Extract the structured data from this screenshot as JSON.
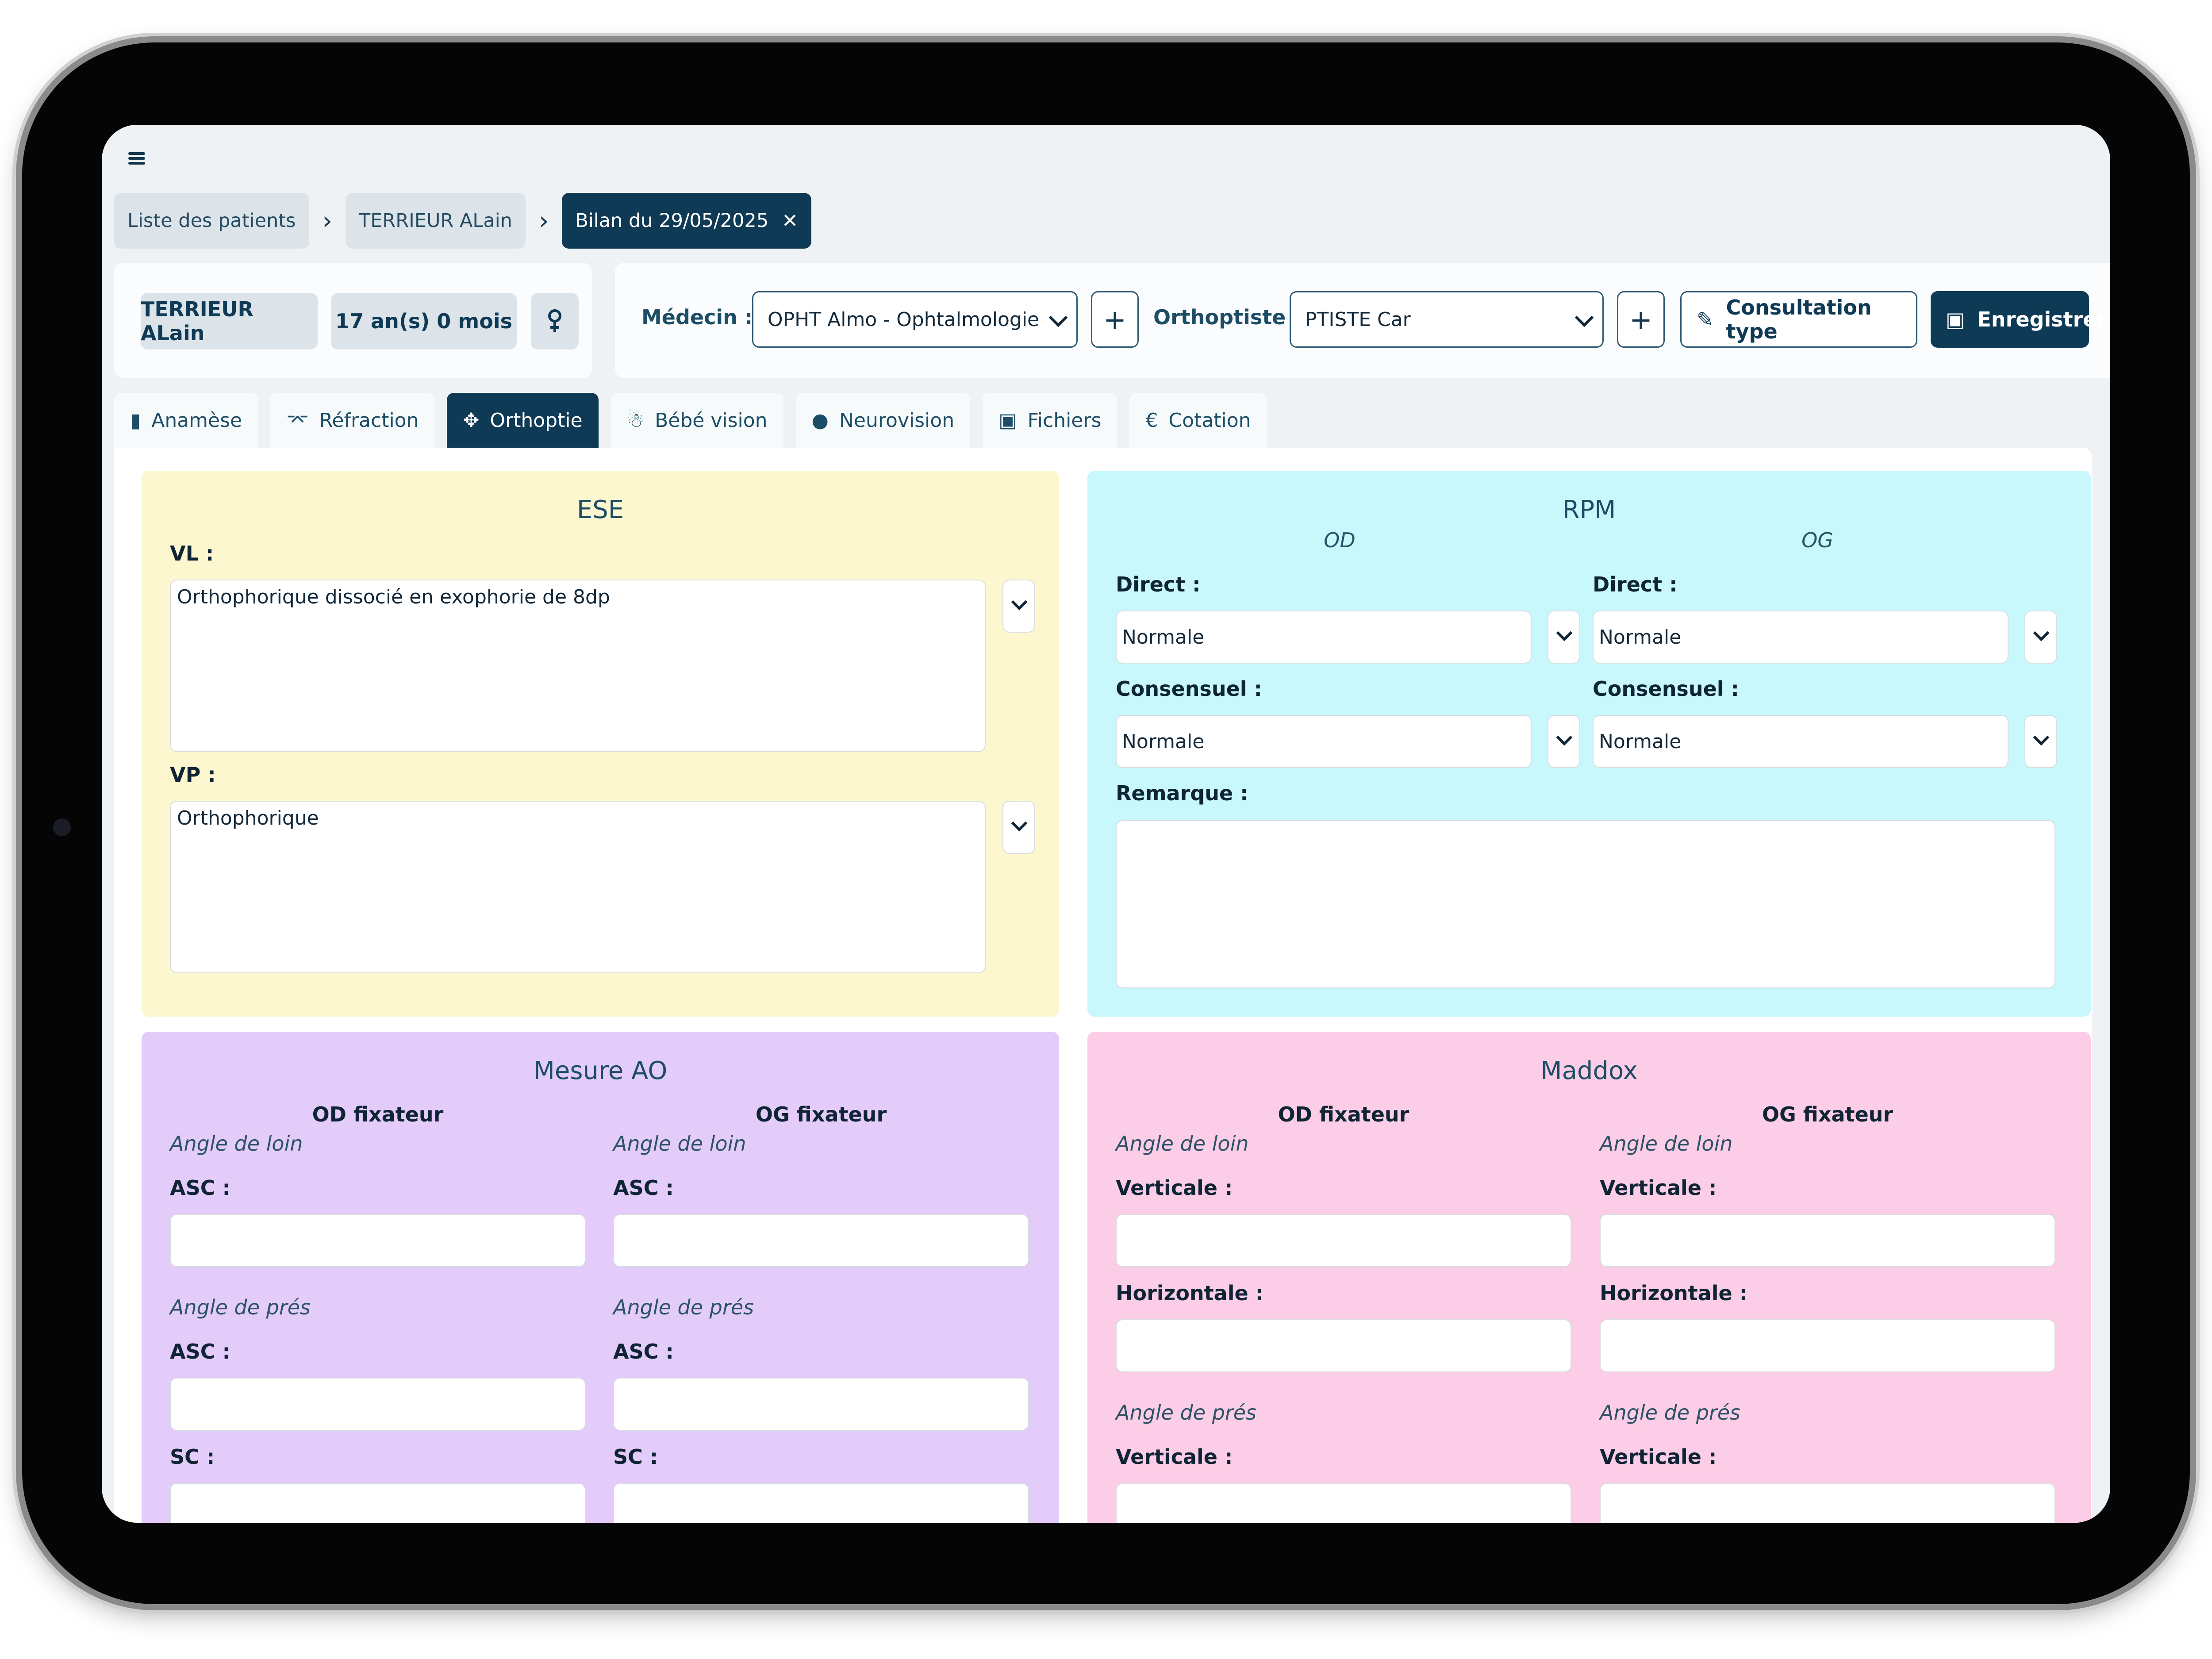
{
  "breadcrumb": {
    "items": [
      "Liste des patients",
      "TERRIEUR ALain"
    ],
    "active": "Bilan du 29/05/2025",
    "close_glyph": "✕"
  },
  "patient": {
    "name": "TERRIEUR ALain",
    "age": "17 an(s) 0 mois",
    "sex_icon": "female-icon"
  },
  "header": {
    "medecin_label": "Médecin :",
    "medecin_value": "OPHT Almo - Ophtalmologie",
    "orthoptiste_label": "Orthoptiste :",
    "orthoptiste_value": "PTISTE Car",
    "add_glyph": "+",
    "consultation_label": "Consultation type",
    "save_label": "Enregistrer"
  },
  "tabs": [
    {
      "label": "Anamèse",
      "icon": "clipboard-icon",
      "glyph": "▮"
    },
    {
      "label": "Réfraction",
      "icon": "glasses-icon",
      "glyph": "⌤"
    },
    {
      "label": "Orthoptie",
      "icon": "move-arrows-icon",
      "glyph": "✥"
    },
    {
      "label": "Bébé vision",
      "icon": "baby-icon",
      "glyph": "☃"
    },
    {
      "label": "Neurovision",
      "icon": "brain-icon",
      "glyph": "●"
    },
    {
      "label": "Fichiers",
      "icon": "image-icon",
      "glyph": "▣"
    },
    {
      "label": "Cotation",
      "icon": "euro-icon",
      "glyph": "€"
    }
  ],
  "ese": {
    "title": "ESE",
    "vl_label": "VL :",
    "vl_value": "Orthophorique dissocié en exophorie de 8dp",
    "vp_label": "VP :",
    "vp_value": "Orthophorique"
  },
  "rpm": {
    "title": "RPM",
    "od": "OD",
    "og": "OG",
    "direct_label": "Direct :",
    "consensuel_label": "Consensuel :",
    "od_direct": "Normale",
    "og_direct": "Normale",
    "od_consensuel": "Normale",
    "og_consensuel": "Normale",
    "remarque_label": "Remarque :",
    "remarque_value": ""
  },
  "mesure_ao": {
    "title": "Mesure AO",
    "od_fixateur": "OD fixateur",
    "og_fixateur": "OG fixateur",
    "angle_loin": "Angle de loin",
    "angle_pres": "Angle de prés",
    "asc_label": "ASC :",
    "sc_label": "SC :"
  },
  "maddox": {
    "title": "Maddox",
    "od_fixateur": "OD fixateur",
    "og_fixateur": "OG fixateur",
    "angle_loin": "Angle de loin",
    "angle_pres": "Angle de prés",
    "verticale_label": "Verticale :",
    "horizontale_label": "Horizontale :"
  },
  "colors": {
    "brand": "#0f3a55",
    "ese_bg": "#fcf7cf",
    "rpm_bg": "#c8f8fb",
    "mesure_ao_bg": "#e3cbfa",
    "maddox_bg": "#fccde6"
  }
}
